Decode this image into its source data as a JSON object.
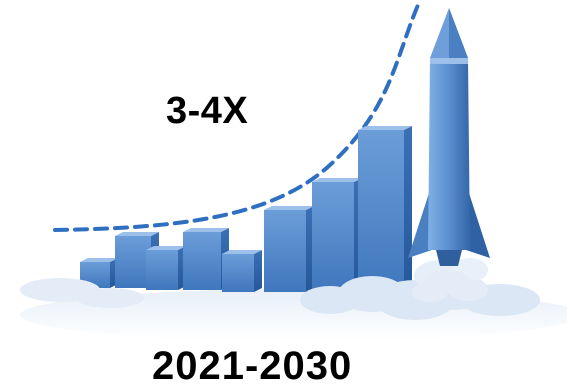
{
  "graphic": {
    "headline": "3-4X",
    "years_caption": "2021-2030",
    "growth_curve_icon": "dashed-trend-curve",
    "rocket_icon": "rocket",
    "colors": {
      "bar_front": "#4f86c9",
      "bar_side": "#2f64a8",
      "bar_top": "#9cc0ea",
      "curve": "#2f6fc2",
      "rocket_body": "#5a8fd0",
      "smoke": "#d9e6f3",
      "text": "#000000"
    }
  }
}
